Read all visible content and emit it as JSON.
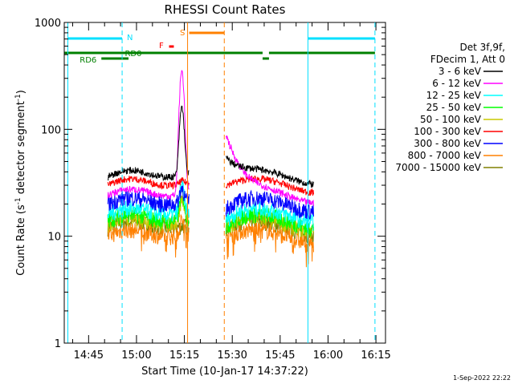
{
  "chart_data": {
    "type": "line",
    "title": "RHESSI Count Rates",
    "xlabel": "Start Time (10-Jan-17 14:37:22)",
    "ylabel_main": "Count Rate (s",
    "ylabel_sup1": "-1",
    "ylabel_mid": " detector segment",
    "ylabel_sup2": "-1",
    "ylabel_end": ")",
    "y_scale": "log",
    "ylim": [
      1,
      1000
    ],
    "xlim_minutes": [
      37.37,
      138.0
    ],
    "x_ticks": [
      {
        "label": "14:45",
        "minute": 45
      },
      {
        "label": "15:00",
        "minute": 60
      },
      {
        "label": "15:15",
        "minute": 75
      },
      {
        "label": "15:30",
        "minute": 90
      },
      {
        "label": "15:45",
        "minute": 105
      },
      {
        "label": "16:00",
        "minute": 120
      },
      {
        "label": "16:15",
        "minute": 135
      }
    ],
    "y_ticks": [
      {
        "label": "1",
        "value": 1
      },
      {
        "label": "10",
        "value": 10
      },
      {
        "label": "100",
        "value": 100
      },
      {
        "label": "1000",
        "value": 1000
      }
    ],
    "legend_header": [
      "Det 3f,9f,",
      "FDecim 1, Att 0"
    ],
    "series": [
      {
        "name": "3 - 6 keV",
        "color": "#000000",
        "base": 36,
        "peak": 160,
        "post": 55
      },
      {
        "name": "6 - 12 keV",
        "color": "#ff00ff",
        "base": 24,
        "peak": 350,
        "post": 90
      },
      {
        "name": "12 - 25 keV",
        "color": "#00ffff",
        "base": 16,
        "peak": 30,
        "post": 14
      },
      {
        "name": "25 - 50 keV",
        "color": "#00ff00",
        "base": 14,
        "peak": 25,
        "post": 12
      },
      {
        "name": "50 - 100 keV",
        "color": "#c8c800",
        "base": 13,
        "peak": 22,
        "post": 12
      },
      {
        "name": "100 - 300 keV",
        "color": "#ff0000",
        "base": 30,
        "peak": 32,
        "post": 30
      },
      {
        "name": "300 - 800 keV",
        "color": "#0000ff",
        "base": 20,
        "peak": 28,
        "post": 18
      },
      {
        "name": "800 - 7000 keV",
        "color": "#ff8000",
        "base": 10,
        "peak": 14,
        "post": 10
      },
      {
        "name": "7000 - 15000 keV",
        "color": "#808000",
        "base": 12,
        "peak": 12,
        "post": 12
      }
    ],
    "segments": [
      {
        "start_min": 51.0,
        "end_min": 76.5
      },
      {
        "start_min": 88.0,
        "end_min": 115.5
      }
    ],
    "flags": [
      {
        "label": "N",
        "color": "#00e0ff"
      },
      {
        "label": "S",
        "color": "#ff8000"
      },
      {
        "label": "F",
        "color": "#ff0000"
      },
      {
        "label": "RD0",
        "color": "#008000"
      },
      {
        "label": "RD6",
        "color": "#008000"
      }
    ],
    "vlines": [
      {
        "minute": 38.5,
        "style": "solid",
        "color": "#00e0ff"
      },
      {
        "minute": 55.5,
        "style": "dashed",
        "color": "#00e0ff"
      },
      {
        "minute": 76.0,
        "style": "solid",
        "color": "#ff8000"
      },
      {
        "minute": 87.5,
        "style": "dashed",
        "color": "#ff8000"
      },
      {
        "minute": 113.7,
        "style": "solid",
        "color": "#00e0ff"
      },
      {
        "minute": 134.7,
        "style": "dashed",
        "color": "#00e0ff"
      }
    ]
  },
  "footer": {
    "timestamp": "1-Sep-2022 22:22"
  }
}
